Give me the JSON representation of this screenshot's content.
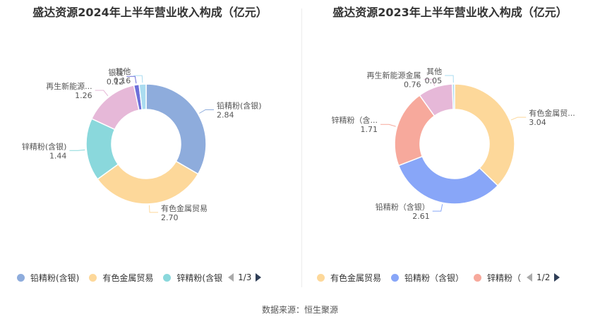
{
  "source": "数据来源：恒生聚源",
  "chart_data": [
    {
      "type": "pie",
      "title": "盛达资源2024年上半年营业收入构成（亿元）",
      "slices": [
        {
          "label": "铅精粉(含银)",
          "display_label": "铅精粉(含银)",
          "value": 2.84,
          "value_text": "2.84",
          "color": "#8eacdc"
        },
        {
          "label": "有色金属贸易",
          "display_label": "有色金属贸易",
          "value": 2.7,
          "value_text": "2.70",
          "color": "#fdd89a"
        },
        {
          "label": "锌精粉(含银)",
          "display_label": "锌精粉(含银)",
          "value": 1.44,
          "value_text": "1.44",
          "color": "#8ad8dc"
        },
        {
          "label": "再生新能源金属",
          "display_label": "再生新能源...",
          "value": 1.26,
          "value_text": "1.26",
          "color": "#e6b8d8"
        },
        {
          "label": "银锭",
          "display_label": "银锭",
          "value": 0.12,
          "value_text": "0.12",
          "color": "#6d6fd9"
        },
        {
          "label": "其他",
          "display_label": "其他",
          "value": 0.16,
          "value_text": "0.16",
          "color": "#aadcf0"
        }
      ],
      "legend": {
        "items": [
          {
            "label": "铅精粉(含银)",
            "color": "#8eacdc"
          },
          {
            "label": "有色金属贸易",
            "color": "#fdd89a"
          },
          {
            "label": "锌精粉(含银",
            "color": "#8ad8dc"
          }
        ],
        "page": "1/3",
        "position": "bottom"
      }
    },
    {
      "type": "pie",
      "title": "盛达资源2023年上半年营业收入构成（亿元）",
      "slices": [
        {
          "label": "有色金属贸易",
          "display_label": "有色金属贸...",
          "value": 3.04,
          "value_text": "3.04",
          "color": "#fdd89a"
        },
        {
          "label": "铅精粉（含银）",
          "display_label": "铅精粉（含银）",
          "value": 2.61,
          "value_text": "2.61",
          "color": "#88a6f8"
        },
        {
          "label": "锌精粉（含银）",
          "display_label": "锌精粉（含...",
          "value": 1.71,
          "value_text": "1.71",
          "color": "#f7a99c"
        },
        {
          "label": "再生新能源金属",
          "display_label": "再生新能源金属",
          "value": 0.76,
          "value_text": "0.76",
          "color": "#e6b8d8"
        },
        {
          "label": "其他",
          "display_label": "其他",
          "value": 0.05,
          "value_text": "0.05",
          "color": "#aadcf0"
        }
      ],
      "legend": {
        "items": [
          {
            "label": "有色金属贸易",
            "color": "#fdd89a"
          },
          {
            "label": "铅精粉（含银）",
            "color": "#88a6f8"
          },
          {
            "label": "锌精粉（",
            "color": "#f7a99c"
          }
        ],
        "page": "1/2",
        "position": "bottom"
      }
    }
  ]
}
